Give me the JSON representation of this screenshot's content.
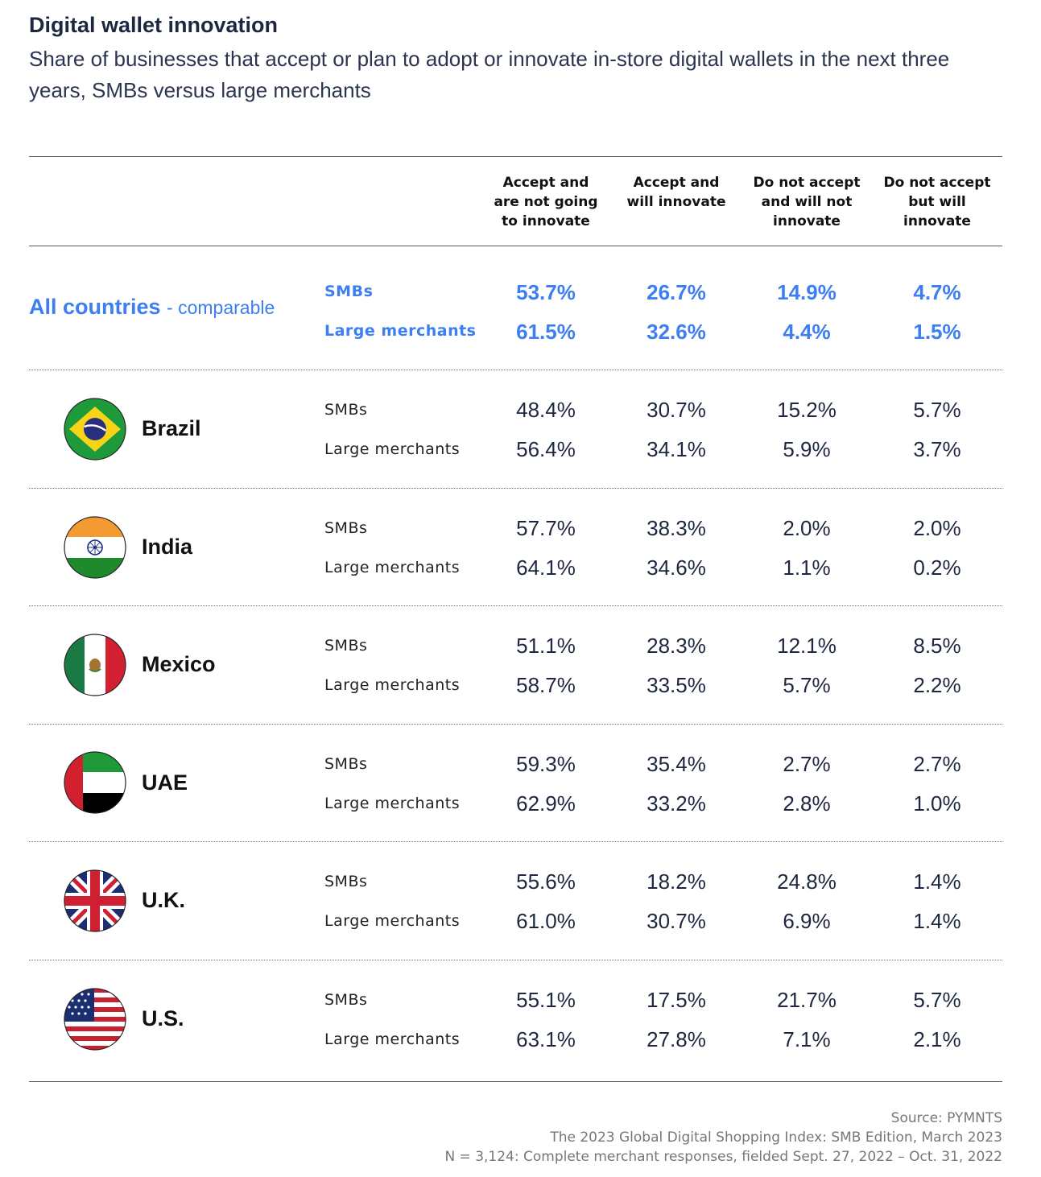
{
  "chart_data": {
    "type": "table",
    "title": "Digital wallet innovation",
    "subtitle": "Share of businesses that accept or plan to adopt or innovate in-store digital wallets in the next three years, SMBs versus large merchants",
    "columns": [
      [
        "Accept and",
        "are not going",
        "to innovate"
      ],
      [
        "Accept and",
        "will innovate"
      ],
      [
        "Do not accept",
        "and will not",
        "innovate"
      ],
      [
        "Do not accept",
        "but will",
        "innovate"
      ]
    ],
    "summary": {
      "label": "All countries",
      "qualifier": "- comparable",
      "rows": [
        {
          "segment": "SMBs",
          "values": [
            "53.7%",
            "26.7%",
            "14.9%",
            "4.7%"
          ]
        },
        {
          "segment": "Large merchants",
          "values": [
            "61.5%",
            "32.6%",
            "4.4%",
            "1.5%"
          ]
        }
      ]
    },
    "countries": [
      {
        "name": "Brazil",
        "flag": "brazil-flag-icon",
        "rows": [
          {
            "segment": "SMBs",
            "values": [
              "48.4%",
              "30.7%",
              "15.2%",
              "5.7%"
            ]
          },
          {
            "segment": "Large merchants",
            "values": [
              "56.4%",
              "34.1%",
              "5.9%",
              "3.7%"
            ]
          }
        ]
      },
      {
        "name": "India",
        "flag": "india-flag-icon",
        "rows": [
          {
            "segment": "SMBs",
            "values": [
              "57.7%",
              "38.3%",
              "2.0%",
              "2.0%"
            ]
          },
          {
            "segment": "Large merchants",
            "values": [
              "64.1%",
              "34.6%",
              "1.1%",
              "0.2%"
            ]
          }
        ]
      },
      {
        "name": "Mexico",
        "flag": "mexico-flag-icon",
        "rows": [
          {
            "segment": "SMBs",
            "values": [
              "51.1%",
              "28.3%",
              "12.1%",
              "8.5%"
            ]
          },
          {
            "segment": "Large merchants",
            "values": [
              "58.7%",
              "33.5%",
              "5.7%",
              "2.2%"
            ]
          }
        ]
      },
      {
        "name": "UAE",
        "flag": "uae-flag-icon",
        "rows": [
          {
            "segment": "SMBs",
            "values": [
              "59.3%",
              "35.4%",
              "2.7%",
              "2.7%"
            ]
          },
          {
            "segment": "Large merchants",
            "values": [
              "62.9%",
              "33.2%",
              "2.8%",
              "1.0%"
            ]
          }
        ]
      },
      {
        "name": "U.K.",
        "flag": "uk-flag-icon",
        "rows": [
          {
            "segment": "SMBs",
            "values": [
              "55.6%",
              "18.2%",
              "24.8%",
              "1.4%"
            ]
          },
          {
            "segment": "Large merchants",
            "values": [
              "61.0%",
              "30.7%",
              "6.9%",
              "1.4%"
            ]
          }
        ]
      },
      {
        "name": "U.S.",
        "flag": "us-flag-icon",
        "rows": [
          {
            "segment": "SMBs",
            "values": [
              "55.1%",
              "17.5%",
              "21.7%",
              "5.7%"
            ]
          },
          {
            "segment": "Large merchants",
            "values": [
              "63.1%",
              "27.8%",
              "7.1%",
              "2.1%"
            ]
          }
        ]
      }
    ],
    "source": [
      "Source: PYMNTS",
      "The 2023 Global Digital Shopping Index: SMB Edition, March 2023",
      "N = 3,124: Complete merchant responses, fielded Sept. 27, 2022 – Oct. 31, 2022"
    ],
    "colors": {
      "accent": "#3d7ef2",
      "text": "#1d2740",
      "muted": "#777777"
    }
  }
}
